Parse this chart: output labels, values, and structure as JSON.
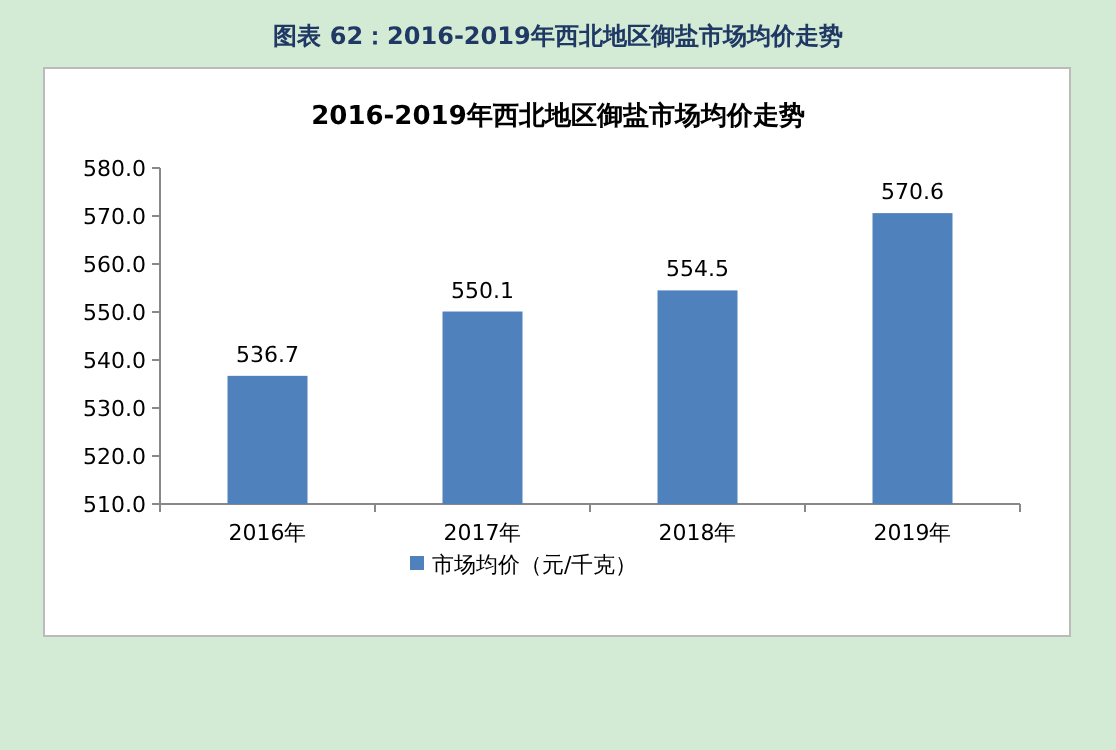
{
  "chart_data": {
    "type": "bar",
    "title": "2016-2019年西北地区御盐市场均价走势",
    "annotations": [
      "图表 62：2016-2019年西北地区御盐市场均价走势"
    ],
    "categories": [
      "2016年",
      "2017年",
      "2018年",
      "2019年"
    ],
    "series": [
      {
        "name": "市场均价（元/千克）",
        "color": "#4f81bd",
        "values": [
          536.7,
          550.1,
          554.5,
          570.6
        ]
      }
    ],
    "ylim": [
      510,
      580
    ],
    "yticks": [
      {
        "value": 510,
        "label": "510.0"
      },
      {
        "value": 520,
        "label": "520.0"
      },
      {
        "value": 530,
        "label": "530.0"
      },
      {
        "value": 540,
        "label": "540.0"
      },
      {
        "value": 550,
        "label": "550.0"
      },
      {
        "value": 560,
        "label": "560.0"
      },
      {
        "value": 570,
        "label": "570.0"
      },
      {
        "value": 580,
        "label": "580.0"
      }
    ],
    "data_labels": true,
    "legend": "bottom"
  }
}
